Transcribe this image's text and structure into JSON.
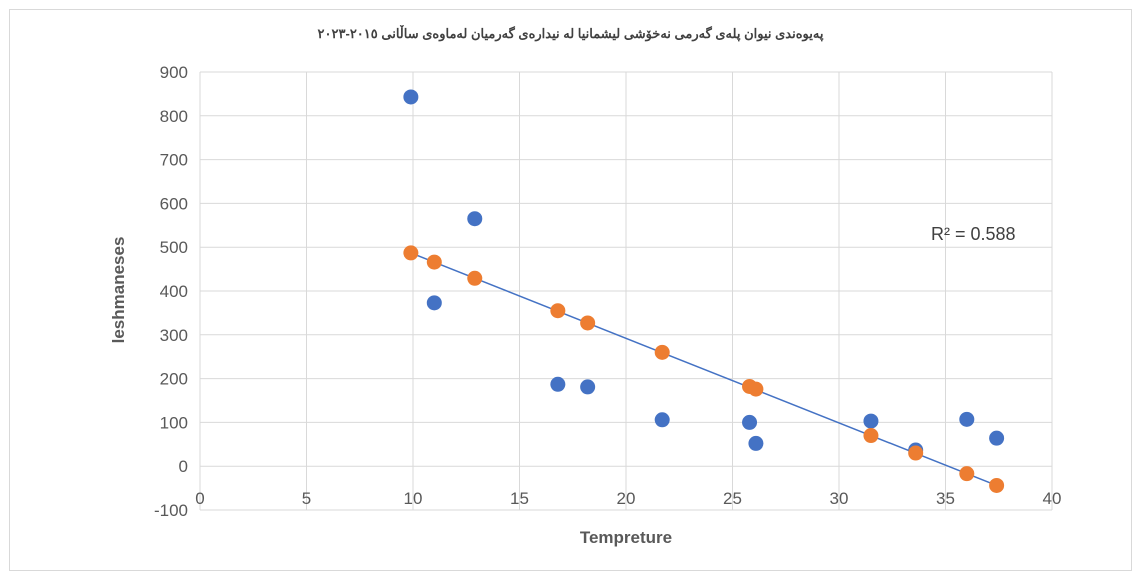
{
  "chart_data": {
    "type": "scatter",
    "title": "پەیوەندی نیوان پلەی گەرمی نەخۆشی لیشمانیا لە نیدارەی گەرمیان لەماوەی ساڵانی ٢٠١٥-٢٠٢٣",
    "xlabel": "Tempreture",
    "ylabel": "leshmaneses",
    "xlim": [
      0,
      40
    ],
    "ylim": [
      -100,
      900
    ],
    "xticks": [
      0,
      5,
      10,
      15,
      20,
      25,
      30,
      35,
      40
    ],
    "yticks": [
      -100,
      0,
      100,
      200,
      300,
      400,
      500,
      600,
      700,
      800,
      900
    ],
    "grid": "vertical and horizontal gridlines",
    "series": [
      {
        "color": "#4472c4",
        "points": [
          {
            "x": 9.9,
            "y": 843
          },
          {
            "x": 11.0,
            "y": 373
          },
          {
            "x": 12.9,
            "y": 565
          },
          {
            "x": 16.8,
            "y": 187
          },
          {
            "x": 18.2,
            "y": 181
          },
          {
            "x": 21.7,
            "y": 106
          },
          {
            "x": 25.8,
            "y": 100
          },
          {
            "x": 26.1,
            "y": 52
          },
          {
            "x": 31.5,
            "y": 103
          },
          {
            "x": 33.6,
            "y": 37
          },
          {
            "x": 36.0,
            "y": 107
          },
          {
            "x": 37.4,
            "y": 64
          }
        ]
      },
      {
        "color": "#ed7d31",
        "points": [
          {
            "x": 9.9,
            "y": 487
          },
          {
            "x": 11.0,
            "y": 466
          },
          {
            "x": 12.9,
            "y": 429
          },
          {
            "x": 16.8,
            "y": 355
          },
          {
            "x": 18.2,
            "y": 327
          },
          {
            "x": 21.7,
            "y": 260
          },
          {
            "x": 25.8,
            "y": 182
          },
          {
            "x": 26.1,
            "y": 176
          },
          {
            "x": 31.5,
            "y": 70
          },
          {
            "x": 33.6,
            "y": 30
          },
          {
            "x": 36.0,
            "y": -17
          },
          {
            "x": 37.4,
            "y": -44
          }
        ]
      }
    ],
    "trendline": {
      "type": "linear",
      "color": "#4472c4",
      "x": [
        9.9,
        37.4
      ],
      "y": [
        487,
        -44
      ]
    },
    "r2_label": "R² = 0.588"
  }
}
